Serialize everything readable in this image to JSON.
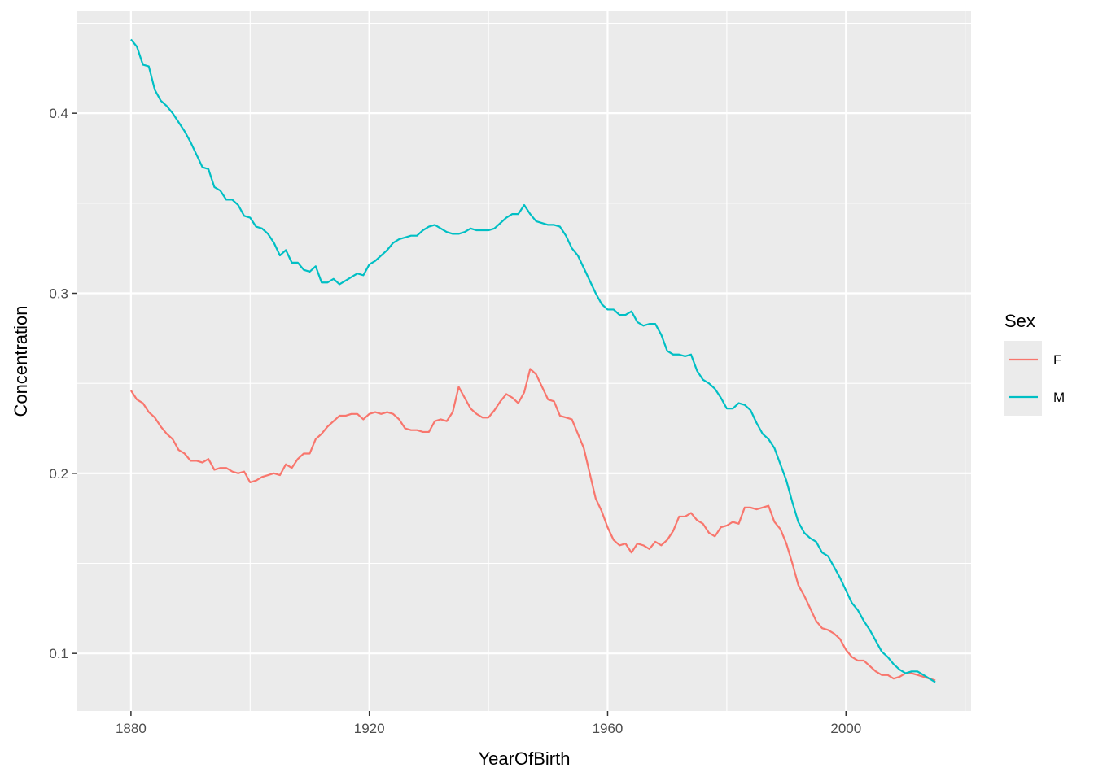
{
  "chart_data": {
    "type": "line",
    "title": "",
    "xlabel": "YearOfBirth",
    "ylabel": "Concentration",
    "xlim": [
      1871,
      2021
    ],
    "ylim": [
      0.068,
      0.457
    ],
    "x_ticks": [
      1880,
      1920,
      1960,
      2000
    ],
    "x_tick_labels": [
      "1880",
      "1920",
      "1960",
      "2000"
    ],
    "y_ticks": [
      0.1,
      0.2,
      0.3,
      0.4
    ],
    "y_tick_labels": [
      "0.1",
      "0.2",
      "0.3",
      "0.4"
    ],
    "grid": true,
    "legend": {
      "title": "Sex",
      "position": "right"
    },
    "series": [
      {
        "name": "F",
        "color": "#F8766D",
        "points": [
          [
            1880,
            0.246
          ],
          [
            1881,
            0.241
          ],
          [
            1882,
            0.239
          ],
          [
            1883,
            0.234
          ],
          [
            1884,
            0.231
          ],
          [
            1885,
            0.226
          ],
          [
            1886,
            0.222
          ],
          [
            1887,
            0.219
          ],
          [
            1888,
            0.213
          ],
          [
            1889,
            0.211
          ],
          [
            1890,
            0.207
          ],
          [
            1891,
            0.207
          ],
          [
            1892,
            0.206
          ],
          [
            1893,
            0.208
          ],
          [
            1894,
            0.202
          ],
          [
            1895,
            0.203
          ],
          [
            1896,
            0.203
          ],
          [
            1897,
            0.201
          ],
          [
            1898,
            0.2
          ],
          [
            1899,
            0.201
          ],
          [
            1900,
            0.195
          ],
          [
            1901,
            0.196
          ],
          [
            1902,
            0.198
          ],
          [
            1903,
            0.199
          ],
          [
            1904,
            0.2
          ],
          [
            1905,
            0.199
          ],
          [
            1906,
            0.205
          ],
          [
            1907,
            0.203
          ],
          [
            1908,
            0.208
          ],
          [
            1909,
            0.211
          ],
          [
            1910,
            0.211
          ],
          [
            1911,
            0.219
          ],
          [
            1912,
            0.222
          ],
          [
            1913,
            0.226
          ],
          [
            1914,
            0.229
          ],
          [
            1915,
            0.232
          ],
          [
            1916,
            0.232
          ],
          [
            1917,
            0.233
          ],
          [
            1918,
            0.233
          ],
          [
            1919,
            0.23
          ],
          [
            1920,
            0.233
          ],
          [
            1921,
            0.234
          ],
          [
            1922,
            0.233
          ],
          [
            1923,
            0.234
          ],
          [
            1924,
            0.233
          ],
          [
            1925,
            0.23
          ],
          [
            1926,
            0.225
          ],
          [
            1927,
            0.224
          ],
          [
            1928,
            0.224
          ],
          [
            1929,
            0.223
          ],
          [
            1930,
            0.223
          ],
          [
            1931,
            0.229
          ],
          [
            1932,
            0.23
          ],
          [
            1933,
            0.229
          ],
          [
            1934,
            0.234
          ],
          [
            1935,
            0.248
          ],
          [
            1936,
            0.242
          ],
          [
            1937,
            0.236
          ],
          [
            1938,
            0.233
          ],
          [
            1939,
            0.231
          ],
          [
            1940,
            0.231
          ],
          [
            1941,
            0.235
          ],
          [
            1942,
            0.24
          ],
          [
            1943,
            0.244
          ],
          [
            1944,
            0.242
          ],
          [
            1945,
            0.239
          ],
          [
            1946,
            0.245
          ],
          [
            1947,
            0.258
          ],
          [
            1948,
            0.255
          ],
          [
            1949,
            0.248
          ],
          [
            1950,
            0.241
          ],
          [
            1951,
            0.24
          ],
          [
            1952,
            0.232
          ],
          [
            1953,
            0.231
          ],
          [
            1954,
            0.23
          ],
          [
            1955,
            0.222
          ],
          [
            1956,
            0.214
          ],
          [
            1957,
            0.2
          ],
          [
            1958,
            0.186
          ],
          [
            1959,
            0.179
          ],
          [
            1960,
            0.17
          ],
          [
            1961,
            0.163
          ],
          [
            1962,
            0.16
          ],
          [
            1963,
            0.161
          ],
          [
            1964,
            0.156
          ],
          [
            1965,
            0.161
          ],
          [
            1966,
            0.16
          ],
          [
            1967,
            0.158
          ],
          [
            1968,
            0.162
          ],
          [
            1969,
            0.16
          ],
          [
            1970,
            0.163
          ],
          [
            1971,
            0.168
          ],
          [
            1972,
            0.176
          ],
          [
            1973,
            0.176
          ],
          [
            1974,
            0.178
          ],
          [
            1975,
            0.174
          ],
          [
            1976,
            0.172
          ],
          [
            1977,
            0.167
          ],
          [
            1978,
            0.165
          ],
          [
            1979,
            0.17
          ],
          [
            1980,
            0.171
          ],
          [
            1981,
            0.173
          ],
          [
            1982,
            0.172
          ],
          [
            1983,
            0.181
          ],
          [
            1984,
            0.181
          ],
          [
            1985,
            0.18
          ],
          [
            1986,
            0.181
          ],
          [
            1987,
            0.182
          ],
          [
            1988,
            0.173
          ],
          [
            1989,
            0.169
          ],
          [
            1990,
            0.161
          ],
          [
            1991,
            0.15
          ],
          [
            1992,
            0.138
          ],
          [
            1993,
            0.132
          ],
          [
            1994,
            0.125
          ],
          [
            1995,
            0.118
          ],
          [
            1996,
            0.114
          ],
          [
            1997,
            0.113
          ],
          [
            1998,
            0.111
          ],
          [
            1999,
            0.108
          ],
          [
            2000,
            0.102
          ],
          [
            2001,
            0.098
          ],
          [
            2002,
            0.096
          ],
          [
            2003,
            0.096
          ],
          [
            2004,
            0.093
          ],
          [
            2005,
            0.09
          ],
          [
            2006,
            0.088
          ],
          [
            2007,
            0.088
          ],
          [
            2008,
            0.086
          ],
          [
            2009,
            0.087
          ],
          [
            2010,
            0.089
          ],
          [
            2011,
            0.089
          ],
          [
            2012,
            0.088
          ],
          [
            2013,
            0.087
          ],
          [
            2014,
            0.086
          ],
          [
            2015,
            0.085
          ]
        ]
      },
      {
        "name": "M",
        "color": "#00BFC4",
        "points": [
          [
            1880,
            0.441
          ],
          [
            1881,
            0.437
          ],
          [
            1882,
            0.427
          ],
          [
            1883,
            0.426
          ],
          [
            1884,
            0.413
          ],
          [
            1885,
            0.407
          ],
          [
            1886,
            0.404
          ],
          [
            1887,
            0.4
          ],
          [
            1888,
            0.395
          ],
          [
            1889,
            0.39
          ],
          [
            1890,
            0.384
          ],
          [
            1891,
            0.377
          ],
          [
            1892,
            0.37
          ],
          [
            1893,
            0.369
          ],
          [
            1894,
            0.359
          ],
          [
            1895,
            0.357
          ],
          [
            1896,
            0.352
          ],
          [
            1897,
            0.352
          ],
          [
            1898,
            0.349
          ],
          [
            1899,
            0.343
          ],
          [
            1900,
            0.342
          ],
          [
            1901,
            0.337
          ],
          [
            1902,
            0.336
          ],
          [
            1903,
            0.333
          ],
          [
            1904,
            0.328
          ],
          [
            1905,
            0.321
          ],
          [
            1906,
            0.324
          ],
          [
            1907,
            0.317
          ],
          [
            1908,
            0.317
          ],
          [
            1909,
            0.313
          ],
          [
            1910,
            0.312
          ],
          [
            1911,
            0.315
          ],
          [
            1912,
            0.306
          ],
          [
            1913,
            0.306
          ],
          [
            1914,
            0.308
          ],
          [
            1915,
            0.305
          ],
          [
            1916,
            0.307
          ],
          [
            1917,
            0.309
          ],
          [
            1918,
            0.311
          ],
          [
            1919,
            0.31
          ],
          [
            1920,
            0.316
          ],
          [
            1921,
            0.318
          ],
          [
            1922,
            0.321
          ],
          [
            1923,
            0.324
          ],
          [
            1924,
            0.328
          ],
          [
            1925,
            0.33
          ],
          [
            1926,
            0.331
          ],
          [
            1927,
            0.332
          ],
          [
            1928,
            0.332
          ],
          [
            1929,
            0.335
          ],
          [
            1930,
            0.337
          ],
          [
            1931,
            0.338
          ],
          [
            1932,
            0.336
          ],
          [
            1933,
            0.334
          ],
          [
            1934,
            0.333
          ],
          [
            1935,
            0.333
          ],
          [
            1936,
            0.334
          ],
          [
            1937,
            0.336
          ],
          [
            1938,
            0.335
          ],
          [
            1939,
            0.335
          ],
          [
            1940,
            0.335
          ],
          [
            1941,
            0.336
          ],
          [
            1942,
            0.339
          ],
          [
            1943,
            0.342
          ],
          [
            1944,
            0.344
          ],
          [
            1945,
            0.344
          ],
          [
            1946,
            0.349
          ],
          [
            1947,
            0.344
          ],
          [
            1948,
            0.34
          ],
          [
            1949,
            0.339
          ],
          [
            1950,
            0.338
          ],
          [
            1951,
            0.338
          ],
          [
            1952,
            0.337
          ],
          [
            1953,
            0.332
          ],
          [
            1954,
            0.325
          ],
          [
            1955,
            0.321
          ],
          [
            1956,
            0.314
          ],
          [
            1957,
            0.307
          ],
          [
            1958,
            0.3
          ],
          [
            1959,
            0.294
          ],
          [
            1960,
            0.291
          ],
          [
            1961,
            0.291
          ],
          [
            1962,
            0.288
          ],
          [
            1963,
            0.288
          ],
          [
            1964,
            0.29
          ],
          [
            1965,
            0.284
          ],
          [
            1966,
            0.282
          ],
          [
            1967,
            0.283
          ],
          [
            1968,
            0.283
          ],
          [
            1969,
            0.277
          ],
          [
            1970,
            0.268
          ],
          [
            1971,
            0.266
          ],
          [
            1972,
            0.266
          ],
          [
            1973,
            0.265
          ],
          [
            1974,
            0.266
          ],
          [
            1975,
            0.257
          ],
          [
            1976,
            0.252
          ],
          [
            1977,
            0.25
          ],
          [
            1978,
            0.247
          ],
          [
            1979,
            0.242
          ],
          [
            1980,
            0.236
          ],
          [
            1981,
            0.236
          ],
          [
            1982,
            0.239
          ],
          [
            1983,
            0.238
          ],
          [
            1984,
            0.235
          ],
          [
            1985,
            0.228
          ],
          [
            1986,
            0.222
          ],
          [
            1987,
            0.219
          ],
          [
            1988,
            0.214
          ],
          [
            1989,
            0.205
          ],
          [
            1990,
            0.196
          ],
          [
            1991,
            0.184
          ],
          [
            1992,
            0.173
          ],
          [
            1993,
            0.167
          ],
          [
            1994,
            0.164
          ],
          [
            1995,
            0.162
          ],
          [
            1996,
            0.156
          ],
          [
            1997,
            0.154
          ],
          [
            1998,
            0.148
          ],
          [
            1999,
            0.142
          ],
          [
            2000,
            0.135
          ],
          [
            2001,
            0.128
          ],
          [
            2002,
            0.124
          ],
          [
            2003,
            0.118
          ],
          [
            2004,
            0.113
          ],
          [
            2005,
            0.107
          ],
          [
            2006,
            0.101
          ],
          [
            2007,
            0.098
          ],
          [
            2008,
            0.094
          ],
          [
            2009,
            0.091
          ],
          [
            2010,
            0.089
          ],
          [
            2011,
            0.09
          ],
          [
            2012,
            0.09
          ],
          [
            2013,
            0.088
          ],
          [
            2014,
            0.086
          ],
          [
            2015,
            0.084
          ]
        ]
      }
    ]
  }
}
